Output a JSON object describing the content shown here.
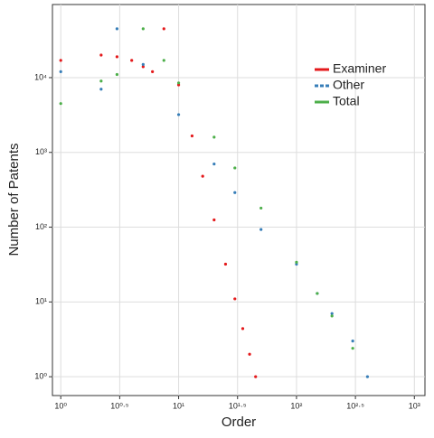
{
  "chart_data": {
    "type": "scatter",
    "x_label": "Order",
    "y_label": "Number of Patents",
    "xscale": "log",
    "yscale": "log",
    "xlim": [
      0.85,
      1230
    ],
    "ylim": [
      0.56,
      95000
    ],
    "xticks": [
      {
        "value": 1,
        "label": "10⁰"
      },
      {
        "value": 3.1623,
        "label": "10⁰·⁵"
      },
      {
        "value": 10,
        "label": "10¹"
      },
      {
        "value": 31.623,
        "label": "10¹·⁵"
      },
      {
        "value": 100,
        "label": "10²"
      },
      {
        "value": 316.23,
        "label": "10²·⁵"
      },
      {
        "value": 1000,
        "label": "10³"
      }
    ],
    "yticks": [
      {
        "value": 1,
        "label": "10⁰"
      },
      {
        "value": 10,
        "label": "10¹"
      },
      {
        "value": 100,
        "label": "10²"
      },
      {
        "value": 1000,
        "label": "10³"
      },
      {
        "value": 10000,
        "label": "10⁴"
      }
    ],
    "grid": true,
    "legend": "upper right",
    "series": [
      {
        "name": "Examiner",
        "color": "#e41a1c",
        "linestyle": "solid",
        "x": [
          1,
          2.2,
          3,
          4,
          5,
          6,
          7.5,
          10,
          13,
          16,
          20,
          25,
          30,
          35,
          40,
          45
        ],
        "values": [
          17000,
          20000,
          19000,
          17000,
          14000,
          12000,
          45000,
          8000,
          1660,
          480,
          125,
          32,
          11,
          4.4,
          2,
          1
        ]
      },
      {
        "name": "Other",
        "color": "#377eb8",
        "linestyle": "dashed",
        "x": [
          1,
          2.2,
          3,
          5,
          10,
          20,
          30,
          50,
          100,
          150,
          200,
          300,
          400
        ],
        "values": [
          12000,
          7000,
          45000,
          15000,
          3200,
          700,
          290,
          93,
          32,
          13,
          7,
          3,
          1
        ]
      },
      {
        "name": "Total",
        "color": "#4daf4a",
        "linestyle": "solid",
        "x": [
          1,
          2.2,
          3,
          5,
          7.5,
          10,
          20,
          30,
          50,
          100,
          150,
          200,
          300
        ],
        "values": [
          4500,
          9000,
          11000,
          45000,
          17000,
          8500,
          1600,
          620,
          180,
          34,
          13,
          6.5,
          2.4
        ]
      }
    ]
  }
}
